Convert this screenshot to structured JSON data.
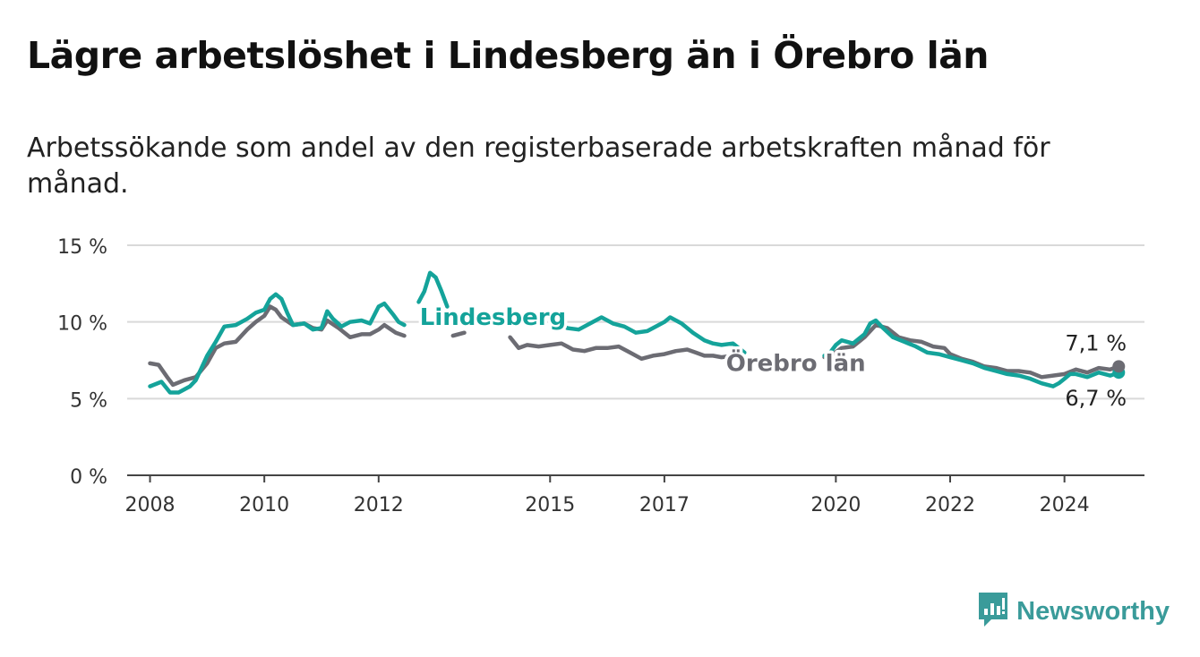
{
  "header": {
    "title": "Lägre arbetslöshet i Lindesberg än i Örebro län",
    "subtitle": "Arbetssökande som andel av den registerbaserade arbetskraften månad för månad."
  },
  "brand": {
    "name": "Newsworthy",
    "icon": "newsworthy-logo-icon",
    "color": "#3a9b9a"
  },
  "chart_data": {
    "type": "line",
    "title": "Lägre arbetslöshet i Lindesberg än i Örebro län",
    "subtitle": "Arbetssökande som andel av den registerbaserade arbetskraften månad för månad.",
    "y_ticks": [
      "0 %",
      "5 %",
      "10 %",
      "15 %"
    ],
    "ylim": [
      0,
      15
    ],
    "x_ticks": [
      "2008",
      "2010",
      "2012",
      "2015",
      "2017",
      "2020",
      "2022",
      "2024"
    ],
    "xlim": [
      2007.6,
      2025.4
    ],
    "grid": true,
    "series": [
      {
        "name": "Lindesberg",
        "color": "#14a39a",
        "end_label": "6,7 %",
        "segments": [
          [
            [
              2008.0,
              5.8
            ],
            [
              2008.2,
              6.1
            ],
            [
              2008.35,
              5.4
            ],
            [
              2008.5,
              5.4
            ],
            [
              2008.7,
              5.8
            ],
            [
              2008.8,
              6.2
            ],
            [
              2008.9,
              7.0
            ],
            [
              2009.0,
              7.8
            ],
            [
              2009.15,
              8.7
            ],
            [
              2009.3,
              9.7
            ],
            [
              2009.5,
              9.8
            ],
            [
              2009.7,
              10.2
            ],
            [
              2009.85,
              10.6
            ],
            [
              2010.0,
              10.8
            ],
            [
              2010.1,
              11.5
            ],
            [
              2010.2,
              11.8
            ],
            [
              2010.3,
              11.5
            ],
            [
              2010.4,
              10.6
            ],
            [
              2010.5,
              9.8
            ],
            [
              2010.7,
              9.9
            ],
            [
              2010.85,
              9.5
            ],
            [
              2011.0,
              9.6
            ],
            [
              2011.1,
              10.7
            ],
            [
              2011.2,
              10.2
            ],
            [
              2011.35,
              9.7
            ],
            [
              2011.5,
              10.0
            ],
            [
              2011.7,
              10.1
            ],
            [
              2011.85,
              9.9
            ],
            [
              2012.0,
              11.0
            ],
            [
              2012.1,
              11.2
            ],
            [
              2012.25,
              10.5
            ],
            [
              2012.35,
              10.0
            ],
            [
              2012.45,
              9.8
            ]
          ],
          [
            [
              2012.7,
              11.3
            ],
            [
              2012.8,
              12.0
            ],
            [
              2012.9,
              13.2
            ],
            [
              2013.0,
              12.9
            ],
            [
              2013.1,
              12.0
            ],
            [
              2013.2,
              11.0
            ]
          ],
          [
            [
              2015.05,
              10.2
            ],
            [
              2015.2,
              9.8
            ],
            [
              2015.3,
              9.6
            ],
            [
              2015.5,
              9.5
            ],
            [
              2015.7,
              9.9
            ],
            [
              2015.9,
              10.3
            ],
            [
              2016.1,
              9.9
            ],
            [
              2016.3,
              9.7
            ],
            [
              2016.5,
              9.3
            ],
            [
              2016.7,
              9.4
            ],
            [
              2016.9,
              9.8
            ],
            [
              2017.0,
              10.0
            ],
            [
              2017.1,
              10.3
            ],
            [
              2017.3,
              9.9
            ],
            [
              2017.5,
              9.3
            ],
            [
              2017.7,
              8.8
            ],
            [
              2017.85,
              8.6
            ],
            [
              2018.0,
              8.5
            ],
            [
              2018.2,
              8.6
            ],
            [
              2018.3,
              8.3
            ],
            [
              2018.4,
              8.0
            ]
          ],
          [
            [
              2019.8,
              7.8
            ],
            [
              2019.9,
              8.0
            ],
            [
              2020.0,
              8.5
            ],
            [
              2020.1,
              8.8
            ],
            [
              2020.3,
              8.6
            ],
            [
              2020.5,
              9.2
            ],
            [
              2020.6,
              9.9
            ],
            [
              2020.7,
              10.1
            ],
            [
              2020.8,
              9.7
            ],
            [
              2021.0,
              9.0
            ],
            [
              2021.2,
              8.7
            ],
            [
              2021.4,
              8.4
            ],
            [
              2021.6,
              8.0
            ],
            [
              2021.8,
              7.9
            ],
            [
              2022.0,
              7.7
            ],
            [
              2022.2,
              7.5
            ],
            [
              2022.4,
              7.3
            ],
            [
              2022.6,
              7.0
            ],
            [
              2022.8,
              6.8
            ],
            [
              2023.0,
              6.6
            ],
            [
              2023.2,
              6.5
            ],
            [
              2023.4,
              6.3
            ],
            [
              2023.6,
              6.0
            ],
            [
              2023.8,
              5.8
            ],
            [
              2023.9,
              6.0
            ],
            [
              2024.0,
              6.3
            ],
            [
              2024.1,
              6.6
            ],
            [
              2024.2,
              6.6
            ],
            [
              2024.4,
              6.4
            ],
            [
              2024.6,
              6.7
            ],
            [
              2024.8,
              6.5
            ],
            [
              2024.95,
              6.7
            ]
          ]
        ]
      },
      {
        "name": "Örebro län",
        "color": "#6c6c73",
        "end_label": "7,1 %",
        "segments": [
          [
            [
              2008.0,
              7.3
            ],
            [
              2008.15,
              7.2
            ],
            [
              2008.3,
              6.4
            ],
            [
              2008.4,
              5.9
            ],
            [
              2008.6,
              6.2
            ],
            [
              2008.8,
              6.4
            ],
            [
              2009.0,
              7.3
            ],
            [
              2009.15,
              8.3
            ],
            [
              2009.3,
              8.6
            ],
            [
              2009.5,
              8.7
            ],
            [
              2009.7,
              9.5
            ],
            [
              2009.85,
              10.0
            ],
            [
              2010.0,
              10.4
            ],
            [
              2010.1,
              11.0
            ],
            [
              2010.2,
              10.8
            ],
            [
              2010.3,
              10.3
            ],
            [
              2010.5,
              9.8
            ],
            [
              2010.7,
              9.9
            ],
            [
              2010.85,
              9.6
            ],
            [
              2011.0,
              9.5
            ],
            [
              2011.1,
              10.1
            ],
            [
              2011.3,
              9.6
            ],
            [
              2011.5,
              9.0
            ],
            [
              2011.7,
              9.2
            ],
            [
              2011.85,
              9.2
            ],
            [
              2012.0,
              9.5
            ],
            [
              2012.1,
              9.8
            ],
            [
              2012.3,
              9.3
            ],
            [
              2012.45,
              9.1
            ]
          ],
          [
            [
              2013.3,
              9.1
            ],
            [
              2013.5,
              9.3
            ]
          ],
          [
            [
              2014.3,
              9.0
            ],
            [
              2014.45,
              8.3
            ],
            [
              2014.6,
              8.5
            ],
            [
              2014.8,
              8.4
            ],
            [
              2015.0,
              8.5
            ],
            [
              2015.2,
              8.6
            ],
            [
              2015.4,
              8.2
            ],
            [
              2015.6,
              8.1
            ],
            [
              2015.8,
              8.3
            ],
            [
              2016.0,
              8.3
            ],
            [
              2016.2,
              8.4
            ],
            [
              2016.4,
              8.0
            ],
            [
              2016.6,
              7.6
            ],
            [
              2016.8,
              7.8
            ],
            [
              2017.0,
              7.9
            ],
            [
              2017.2,
              8.1
            ],
            [
              2017.4,
              8.2
            ],
            [
              2017.55,
              8.0
            ],
            [
              2017.7,
              7.8
            ],
            [
              2017.85,
              7.8
            ],
            [
              2018.0,
              7.7
            ],
            [
              2018.2,
              7.8
            ]
          ],
          [
            [
              2019.8,
              7.7
            ],
            [
              2019.95,
              7.9
            ],
            [
              2020.1,
              8.3
            ],
            [
              2020.3,
              8.4
            ],
            [
              2020.5,
              9.0
            ],
            [
              2020.7,
              9.8
            ],
            [
              2020.9,
              9.6
            ],
            [
              2021.1,
              9.0
            ],
            [
              2021.3,
              8.8
            ],
            [
              2021.5,
              8.7
            ],
            [
              2021.7,
              8.4
            ],
            [
              2021.9,
              8.3
            ],
            [
              2022.0,
              7.9
            ],
            [
              2022.2,
              7.6
            ],
            [
              2022.4,
              7.4
            ],
            [
              2022.6,
              7.1
            ],
            [
              2022.8,
              7.0
            ],
            [
              2023.0,
              6.8
            ],
            [
              2023.2,
              6.8
            ],
            [
              2023.4,
              6.7
            ],
            [
              2023.6,
              6.4
            ],
            [
              2023.8,
              6.5
            ],
            [
              2024.0,
              6.6
            ],
            [
              2024.2,
              6.9
            ],
            [
              2024.4,
              6.7
            ],
            [
              2024.6,
              7.0
            ],
            [
              2024.8,
              6.9
            ],
            [
              2024.95,
              7.1
            ]
          ]
        ]
      }
    ],
    "annotations": [
      {
        "text": "Lindesberg",
        "series": "Lindesberg",
        "x": 2014.0,
        "y": 9.8
      },
      {
        "text": "Örebro län",
        "series": "Örebro län",
        "x": 2019.3,
        "y": 6.8
      }
    ]
  }
}
